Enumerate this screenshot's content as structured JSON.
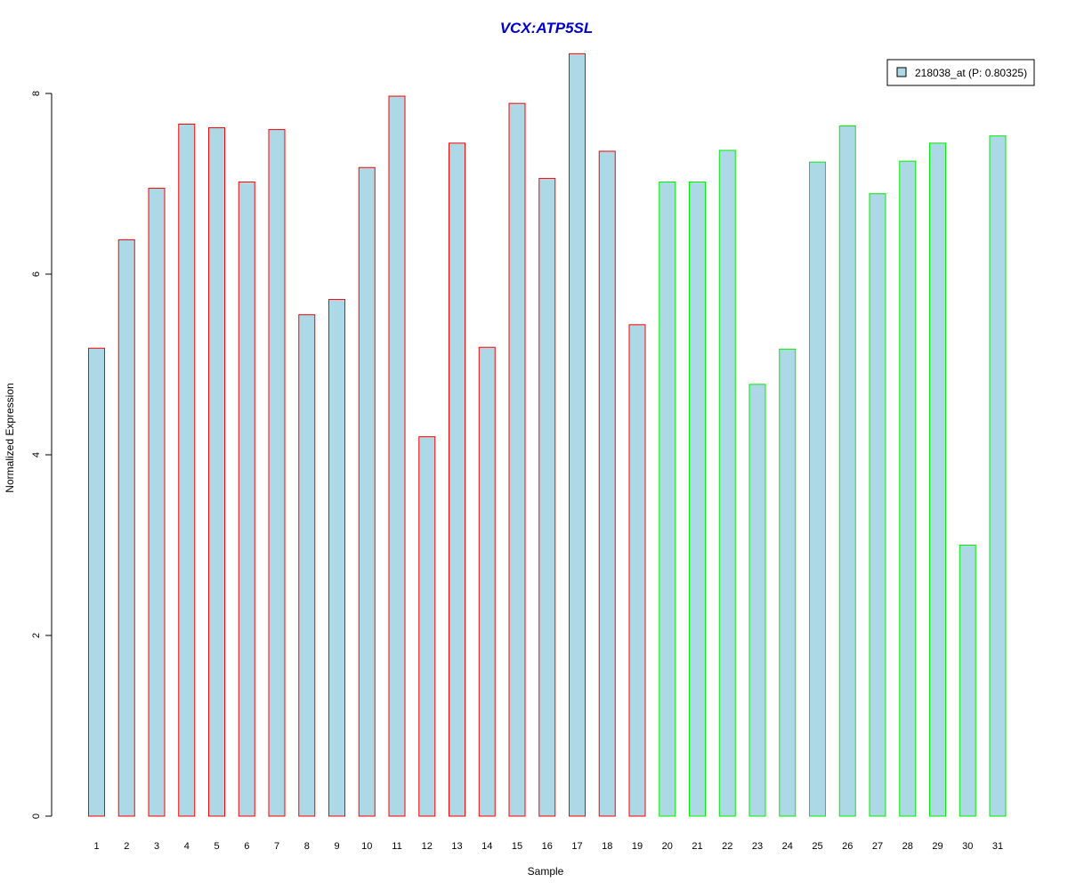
{
  "chart_data": {
    "type": "bar",
    "title": "VCX:ATP5SL",
    "xlabel": "Sample",
    "ylabel": "Normalized Expression",
    "ylim": [
      0,
      8
    ],
    "yticks": [
      "0",
      "2",
      "4",
      "6",
      "8"
    ],
    "categories": [
      "1",
      "2",
      "3",
      "4",
      "5",
      "6",
      "7",
      "8",
      "9",
      "10",
      "11",
      "12",
      "13",
      "14",
      "15",
      "16",
      "17",
      "18",
      "19",
      "20",
      "21",
      "22",
      "23",
      "24",
      "25",
      "26",
      "27",
      "28",
      "29",
      "30",
      "31"
    ],
    "values": [
      5.18,
      6.38,
      6.95,
      7.66,
      7.62,
      7.02,
      7.6,
      5.55,
      5.72,
      7.18,
      7.97,
      4.2,
      7.45,
      5.19,
      7.89,
      7.06,
      8.44,
      7.36,
      5.44,
      7.02,
      7.02,
      7.37,
      4.78,
      5.17,
      7.24,
      7.64,
      6.89,
      7.25,
      7.45,
      3.0,
      7.53
    ],
    "group1_count": 19,
    "grid": false,
    "legend": {
      "placement": "top-right",
      "entries": [
        "218038_at (P: 0.80325)"
      ]
    },
    "colors": {
      "bar_fill": "#add8e6",
      "group1_border": "#ff0000",
      "group2_border": "#00ee00",
      "title": "#0000cc"
    }
  }
}
